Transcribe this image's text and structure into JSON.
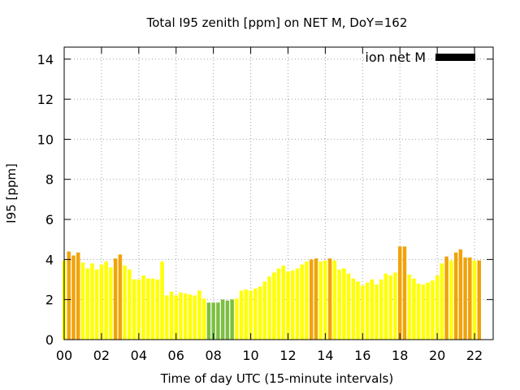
{
  "chart_data": {
    "type": "bar",
    "title": "Total I95 zenith [ppm] on NET M, DoY=162",
    "xlabel": "Time of day UTC (15-minute intervals)",
    "ylabel": "I95 [ppm]",
    "xlim": [
      0,
      23
    ],
    "ylim": [
      0,
      14.6
    ],
    "x_ticks": [
      "00",
      "02",
      "04",
      "06",
      "08",
      "10",
      "12",
      "14",
      "16",
      "18",
      "20",
      "22"
    ],
    "y_ticks": [
      "0",
      "2",
      "4",
      "6",
      "8",
      "10",
      "12",
      "14"
    ],
    "grid": true,
    "legend_position": "top-right",
    "legend": {
      "label": "ion net M",
      "color": "#000000"
    },
    "interval_hours": 0.25,
    "start_hour": 0,
    "values": [
      3.95,
      4.4,
      4.2,
      4.35,
      3.85,
      3.55,
      3.8,
      3.5,
      3.75,
      3.9,
      3.6,
      4.05,
      4.25,
      3.7,
      3.5,
      3.0,
      3.0,
      3.2,
      3.05,
      3.05,
      3.0,
      3.9,
      2.2,
      2.4,
      2.2,
      2.35,
      2.3,
      2.25,
      2.2,
      2.45,
      2.05,
      1.85,
      1.85,
      1.85,
      2.0,
      1.95,
      2.0,
      2.05,
      2.45,
      2.5,
      2.45,
      2.55,
      2.65,
      2.9,
      3.15,
      3.35,
      3.55,
      3.7,
      3.4,
      3.45,
      3.55,
      3.75,
      3.9,
      4.0,
      4.05,
      3.9,
      3.95,
      4.05,
      3.95,
      3.5,
      3.55,
      3.3,
      3.05,
      2.9,
      2.7,
      2.85,
      3.0,
      2.75,
      3.0,
      3.3,
      3.2,
      3.35,
      4.65,
      4.65,
      3.25,
      3.05,
      2.8,
      2.75,
      2.85,
      2.95,
      3.2,
      3.8,
      4.15,
      3.95,
      4.35,
      4.5,
      4.1,
      4.1,
      3.95,
      3.95
    ],
    "color_categories": [
      "Y",
      "O",
      "O",
      "O",
      "Y",
      "Y",
      "Y",
      "Y",
      "Y",
      "Y",
      "Y",
      "O",
      "O",
      "Y",
      "Y",
      "Y",
      "Y",
      "Y",
      "Y",
      "Y",
      "Y",
      "Y",
      "Y",
      "Y",
      "Y",
      "Y",
      "Y",
      "Y",
      "Y",
      "Y",
      "Y",
      "G",
      "G",
      "G",
      "G",
      "G",
      "G",
      "Y",
      "Y",
      "Y",
      "Y",
      "Y",
      "Y",
      "Y",
      "Y",
      "Y",
      "Y",
      "Y",
      "Y",
      "Y",
      "Y",
      "Y",
      "Y",
      "O",
      "O",
      "Y",
      "Y",
      "O",
      "Y",
      "Y",
      "Y",
      "Y",
      "Y",
      "Y",
      "Y",
      "Y",
      "Y",
      "Y",
      "Y",
      "Y",
      "Y",
      "Y",
      "O",
      "O",
      "Y",
      "Y",
      "Y",
      "Y",
      "Y",
      "Y",
      "Y",
      "Y",
      "O",
      "Y",
      "O",
      "O",
      "O",
      "O",
      "Y",
      "O"
    ],
    "colors": {
      "Y": "#ffff00",
      "O": "#f0a30a",
      "G": "#7cbf41"
    }
  }
}
